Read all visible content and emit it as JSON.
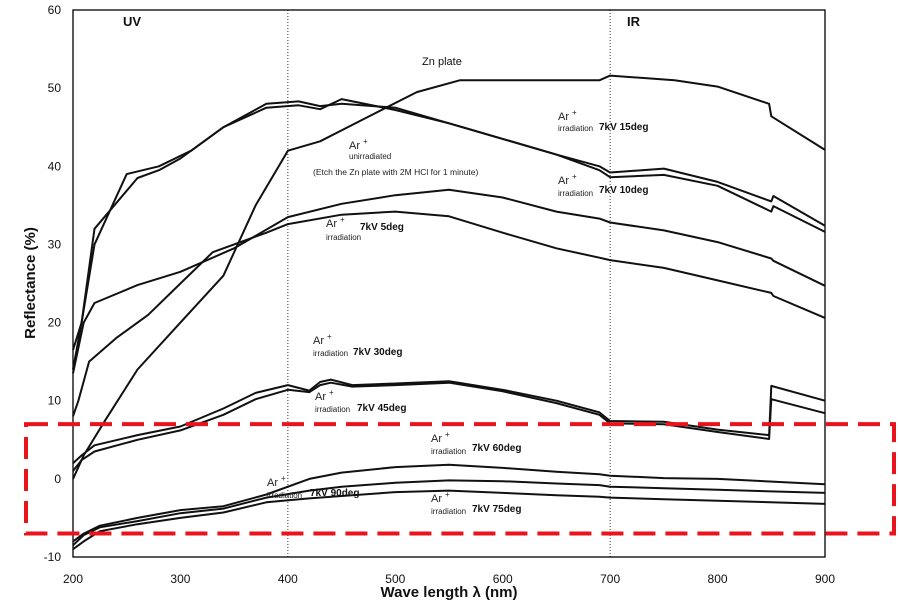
{
  "chart_data": {
    "type": "line",
    "xlabel": "Wave length λ (nm)",
    "ylabel": "Reflectance (%)",
    "xlim": [
      200,
      900
    ],
    "ylim": [
      -10,
      60
    ],
    "x_ticks": [
      "200",
      "300",
      "400",
      "500",
      "600",
      "700",
      "800",
      "900"
    ],
    "y_ticks": [
      "-10",
      "0",
      "10",
      "20",
      "30",
      "40",
      "50",
      "60"
    ],
    "grid": "dotted vertical lines at 400 and 700",
    "regions": [
      "UV",
      "IR"
    ],
    "highlight_box": {
      "color": "#e8141b",
      "x_range": [
        200,
        900
      ],
      "y_range": [
        -7,
        7
      ]
    },
    "annotations": {
      "zn_plate": {
        "a": "Zn",
        "b": "plate"
      },
      "unirradiated": {
        "ion": "Ar",
        "sup": "+",
        "sub": "unirradiated",
        "note": "(Etch the Zn plate with 2M HCl for 1 minute)"
      },
      "deg15": {
        "ion": "Ar",
        "sup": "+",
        "sub": "irradiation",
        "cond": "7kV 15deg"
      },
      "deg10": {
        "ion": "Ar",
        "sup": "+",
        "sub": "irradiation",
        "cond": "7kV 10deg"
      },
      "deg5": {
        "ion": "Ar",
        "sup": "+",
        "sub": "irradiation",
        "cond": "7kV 5deg"
      },
      "deg30": {
        "ion": "Ar",
        "sup": "+",
        "sub": "irradiation",
        "cond": "7kV 30deg"
      },
      "deg45": {
        "ion": "Ar",
        "sup": "+",
        "sub": "irradiation",
        "cond": "7kV 45deg"
      },
      "deg60": {
        "ion": "Ar",
        "sup": "+",
        "sub": "irradiation",
        "cond": "7kV 60deg"
      },
      "deg90": {
        "ion": "Ar",
        "sup": "+",
        "sub": "irradiation",
        "cond": "7kV 90deg"
      },
      "deg75": {
        "ion": "Ar",
        "sup": "+",
        "sub": "irradiation",
        "cond": "7kV 75deg"
      }
    },
    "series": [
      {
        "id": "zn_plate",
        "x": [
          200,
          210,
          230,
          260,
          300,
          340,
          370,
          400,
          430,
          470,
          520,
          560,
          600,
          650,
          690,
          700,
          760,
          800,
          848,
          850,
          900
        ],
        "y": [
          0,
          3,
          7.5,
          14,
          20,
          26,
          35,
          42,
          43.2,
          46,
          49.5,
          51,
          51,
          51,
          51,
          51.6,
          51,
          50.2,
          48,
          46.4,
          42.1
        ]
      },
      {
        "id": "unirradiated",
        "x": [
          200,
          208,
          220,
          250,
          280,
          310,
          340,
          380,
          410,
          430,
          450,
          500,
          550,
          600,
          650,
          690,
          700,
          750,
          800,
          850,
          852,
          900
        ],
        "y": [
          16.5,
          20,
          30,
          39,
          40,
          42,
          45,
          48,
          48.3,
          47.7,
          48,
          47.5,
          45.5,
          43.5,
          41.5,
          40,
          39.2,
          39.7,
          38,
          35.5,
          36.2,
          32.4
        ]
      },
      {
        "id": "deg15",
        "x": [
          200,
          208,
          220,
          260,
          280,
          300,
          340,
          380,
          410,
          430,
          450,
          500,
          550,
          600,
          650,
          690,
          700,
          750,
          800,
          850,
          852,
          900
        ],
        "y": [
          14,
          20,
          32,
          38.5,
          39.5,
          41,
          45,
          47.5,
          47.8,
          47.3,
          48.6,
          47.2,
          45.5,
          43.5,
          41.5,
          39.5,
          38.6,
          38.9,
          37.5,
          34.2,
          34.9,
          31.6
        ]
      },
      {
        "id": "deg10",
        "x": [
          200,
          210,
          220,
          260,
          300,
          350,
          400,
          450,
          500,
          550,
          600,
          650,
          690,
          700,
          750,
          800,
          850,
          852,
          900
        ],
        "y": [
          13.5,
          20,
          22.5,
          24.8,
          26.5,
          29.5,
          33.5,
          35.2,
          36.3,
          37.0,
          36.0,
          34.2,
          33.3,
          32.8,
          31.8,
          30.3,
          28.2,
          27.9,
          24.7
        ]
      },
      {
        "id": "deg5",
        "x": [
          200,
          205,
          215,
          240,
          270,
          300,
          330,
          350,
          370,
          380,
          400,
          450,
          500,
          550,
          600,
          650,
          690,
          700,
          750,
          800,
          850,
          852,
          900
        ],
        "y": [
          8,
          10,
          15,
          18,
          21,
          25,
          29,
          30,
          31,
          31.5,
          32.6,
          33.8,
          34.2,
          33.6,
          31.5,
          29.5,
          28.3,
          28.0,
          27.0,
          25.4,
          23.8,
          23.4,
          20.6
        ]
      },
      {
        "id": "deg30",
        "x": [
          200,
          208,
          220,
          260,
          300,
          340,
          370,
          400,
          420,
          430,
          440,
          460,
          500,
          550,
          600,
          650,
          690,
          700,
          750,
          800,
          848,
          850,
          900
        ],
        "y": [
          2,
          3,
          4.3,
          5.6,
          6.7,
          9,
          11,
          12,
          11.3,
          12.4,
          12.7,
          12,
          12.2,
          12.5,
          11.4,
          10,
          8.5,
          7.4,
          7.3,
          6.3,
          5.6,
          11.9,
          10
        ]
      },
      {
        "id": "deg45",
        "x": [
          200,
          208,
          220,
          260,
          300,
          340,
          370,
          400,
          420,
          430,
          440,
          460,
          500,
          550,
          600,
          650,
          690,
          700,
          750,
          800,
          848,
          850,
          900
        ],
        "y": [
          1,
          2.4,
          3.5,
          5.0,
          6.2,
          8.2,
          10.2,
          11.4,
          11.1,
          12.0,
          12.3,
          11.8,
          12.0,
          12.3,
          11.2,
          9.7,
          8.2,
          7.1,
          7.0,
          6.0,
          5.1,
          10.2,
          8.4
        ]
      },
      {
        "id": "deg60",
        "x": [
          200,
          210,
          225,
          260,
          300,
          340,
          380,
          420,
          450,
          500,
          550,
          600,
          650,
          690,
          700,
          750,
          800,
          900
        ],
        "y": [
          -8,
          -7,
          -6,
          -5,
          -4,
          -3.5,
          -2,
          0,
          0.8,
          1.5,
          1.8,
          1.4,
          0.9,
          0.6,
          0.4,
          0.1,
          0,
          -0.7
        ]
      },
      {
        "id": "deg90",
        "x": [
          200,
          210,
          225,
          260,
          300,
          340,
          380,
          420,
          450,
          500,
          550,
          600,
          650,
          690,
          700,
          750,
          800,
          900
        ],
        "y": [
          -8.5,
          -7.2,
          -6.2,
          -5.4,
          -4.4,
          -3.8,
          -2.4,
          -1.5,
          -1.0,
          -0.5,
          -0.2,
          -0.3,
          -0.6,
          -0.8,
          -1.0,
          -1.2,
          -1.4,
          -1.8
        ]
      },
      {
        "id": "deg75",
        "x": [
          200,
          210,
          225,
          260,
          300,
          340,
          380,
          420,
          450,
          500,
          550,
          600,
          650,
          690,
          700,
          750,
          800,
          900
        ],
        "y": [
          -9,
          -8,
          -6.7,
          -5.8,
          -5.0,
          -4.3,
          -3.0,
          -2.5,
          -2.2,
          -1.7,
          -1.5,
          -1.8,
          -2.1,
          -2.3,
          -2.4,
          -2.6,
          -2.8,
          -3.2
        ]
      }
    ]
  }
}
